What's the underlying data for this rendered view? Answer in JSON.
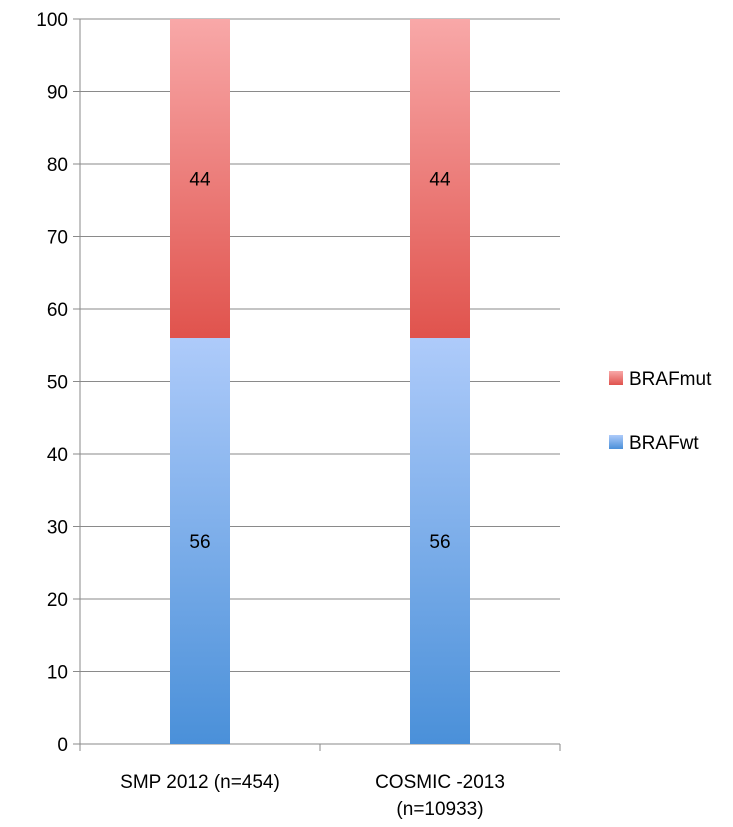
{
  "chart_data": {
    "type": "bar",
    "stacked": true,
    "categories": [
      [
        "SMP 2012 (n=454)"
      ],
      [
        "COSMIC -2013",
        "(n=10933)"
      ]
    ],
    "series": [
      {
        "name": "BRAFwt",
        "values": [
          56,
          56
        ],
        "labels": [
          "56",
          "56"
        ],
        "color_top": "#aecbfa",
        "color_bottom": "#4a90d9"
      },
      {
        "name": "BRAFmut",
        "values": [
          44,
          44
        ],
        "labels": [
          "44",
          "44"
        ],
        "color_top": "#f8a8a8",
        "color_bottom": "#e0534d"
      }
    ],
    "ylim": [
      0,
      100
    ],
    "yticks": [
      0,
      10,
      20,
      30,
      40,
      50,
      60,
      70,
      80,
      90,
      100
    ],
    "grid": true,
    "legend_position": "right",
    "legend_order": [
      "BRAFmut",
      "BRAFwt"
    ],
    "title": "",
    "xlabel": "",
    "ylabel": ""
  }
}
